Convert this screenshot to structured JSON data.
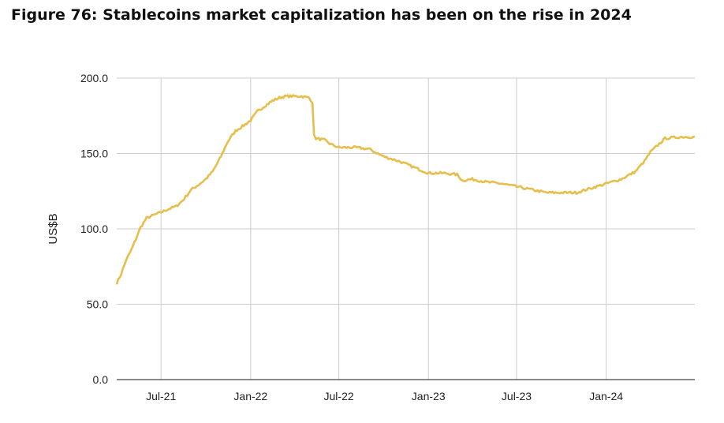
{
  "figure": {
    "title": "Figure 76: Stablecoins market capitalization has been on the rise in 2024"
  },
  "chart_data": {
    "type": "line",
    "title": "Figure 76: Stablecoins market capitalization has been on the rise in 2024",
    "xlabel": "",
    "ylabel": "US$B",
    "ylim": [
      0,
      200
    ],
    "yticks": [
      "0.0",
      "50.0",
      "100.0",
      "150.0",
      "200.0"
    ],
    "xticks": [
      "Jul-21",
      "Jan-22",
      "Jul-22",
      "Jan-23",
      "Jul-23",
      "Jan-24"
    ],
    "xtick_dates": [
      "2021-07-01",
      "2022-01-01",
      "2022-07-01",
      "2023-01-01",
      "2023-07-01",
      "2024-01-01"
    ],
    "xlim": [
      "2021-04-01",
      "2024-07-01"
    ],
    "grid": true,
    "color": "#E6BE4C",
    "series": [
      {
        "x": [
          "2021-04-01",
          "2021-04-10",
          "2021-04-20",
          "2021-05-01",
          "2021-05-10",
          "2021-05-20",
          "2021-06-01",
          "2021-06-15",
          "2021-07-01",
          "2021-07-15",
          "2021-08-01",
          "2021-08-15",
          "2021-09-01",
          "2021-09-15",
          "2021-10-01",
          "2021-10-15",
          "2021-11-01",
          "2021-11-15",
          "2021-12-01",
          "2021-12-15",
          "2022-01-01",
          "2022-01-15",
          "2022-02-01",
          "2022-02-15",
          "2022-03-01",
          "2022-03-15",
          "2022-04-01",
          "2022-04-15",
          "2022-05-01",
          "2022-05-08",
          "2022-05-11",
          "2022-05-15",
          "2022-06-01",
          "2022-06-15",
          "2022-07-01",
          "2022-08-01",
          "2022-09-01",
          "2022-10-01",
          "2022-11-01",
          "2022-12-01",
          "2023-01-01",
          "2023-02-01",
          "2023-03-01",
          "2023-03-12",
          "2023-04-01",
          "2023-05-01",
          "2023-06-01",
          "2023-07-01",
          "2023-08-01",
          "2023-09-01",
          "2023-10-01",
          "2023-11-01",
          "2023-12-01",
          "2024-01-01",
          "2024-02-01",
          "2024-03-01",
          "2024-03-20",
          "2024-04-01",
          "2024-05-01",
          "2024-06-01",
          "2024-07-01"
        ],
        "y": [
          64,
          70,
          79,
          86,
          93,
          101,
          107,
          109,
          111,
          113,
          115,
          119,
          126,
          129,
          133,
          138,
          148,
          158,
          165,
          168,
          172,
          178,
          182,
          185,
          187,
          188,
          188,
          188,
          187,
          184,
          162,
          160,
          159,
          156,
          154,
          154,
          153,
          148,
          145,
          141,
          137,
          137,
          136,
          132,
          133,
          131,
          130,
          128,
          126,
          124,
          124,
          124,
          127,
          130,
          133,
          138,
          145,
          151,
          160,
          161,
          161
        ]
      }
    ]
  }
}
